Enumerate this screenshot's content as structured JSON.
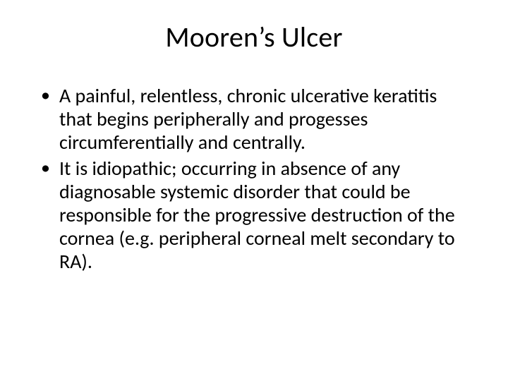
{
  "slide": {
    "background_color": "#ffffff",
    "text_color": "#000000",
    "title": {
      "text": "Mooren’s Ulcer",
      "font_size_pt": 40,
      "font_weight": 400,
      "align": "center"
    },
    "body": {
      "font_size_pt": 28,
      "line_height": 1.18,
      "bullets": [
        "A painful, relentless, chronic ulcerative keratitis that begins peripherally and progesses circumferentially and centrally.",
        "It is idiopathic; occurring in absence of any diagnosable systemic disorder that could be responsible for the progressive destruction of the cornea (e.g. peripheral corneal melt secondary to RA)."
      ]
    }
  }
}
